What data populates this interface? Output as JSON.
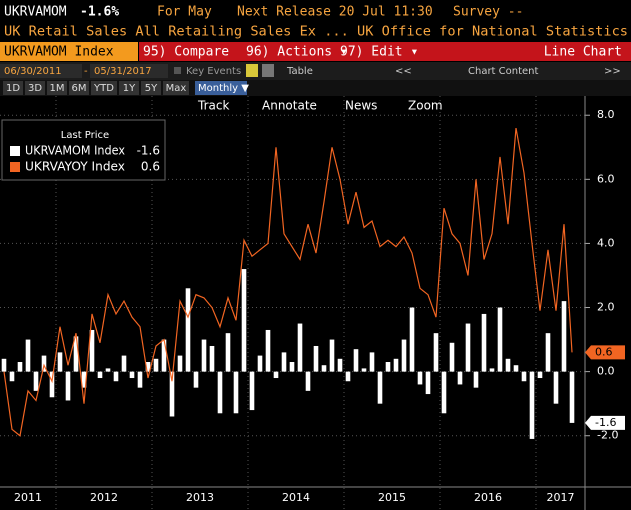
{
  "header": {
    "ticker": "UKRVAMOM",
    "change": "-1.6%",
    "period": "For May",
    "release": "Next Release 20 Jul 11:30",
    "survey": "Survey --",
    "description": "UK Retail Sales All Retailing Sales Ex ... UK Office for National Statistics"
  },
  "toolbar": {
    "security": "UKRVAMOM Index",
    "buttons": [
      "95) Compare",
      "96) Actions ▾",
      "97) Edit ▾"
    ],
    "chart_type": "Line Chart"
  },
  "controls": {
    "start": "06/30/2011",
    "end": "05/31/2017",
    "key_events": "Key Events",
    "table": "Table",
    "chart_content": "Chart Content",
    "periods": [
      "1D",
      "3D",
      "1M",
      "6M",
      "YTD",
      "1Y",
      "5Y",
      "Max"
    ],
    "frequency": "Monthly ▼"
  },
  "tools": [
    "Track",
    "Annotate",
    "News",
    "Zoom"
  ],
  "chart_data": {
    "type": "bar_line",
    "legend_title": "Last Price",
    "year_labels": [
      "2011",
      "2012",
      "2013",
      "2014",
      "2015",
      "2016",
      "2017"
    ],
    "series": [
      {
        "name": "UKRVAMOM Index",
        "kind": "bar",
        "color": "#ffffff",
        "values": [
          0.4,
          -0.3,
          0.3,
          1.0,
          -0.6,
          0.5,
          -0.8,
          0.6,
          -0.9,
          1.1,
          -0.5,
          1.3,
          -0.2,
          0.1,
          -0.3,
          0.5,
          -0.2,
          -0.5,
          0.3,
          0.4,
          1.0,
          -1.4,
          0.5,
          2.6,
          -0.5,
          1.0,
          0.8,
          -1.3,
          1.2,
          -1.3,
          3.2,
          -1.2,
          0.5,
          1.3,
          -0.2,
          0.6,
          0.3,
          1.5,
          -0.6,
          0.8,
          0.2,
          1.0,
          0.4,
          -0.3,
          0.7,
          0.1,
          0.6,
          -1.0,
          0.3,
          0.4,
          1.0,
          2.0,
          -0.4,
          -0.7,
          1.2,
          -1.3,
          0.9,
          -0.4,
          1.5,
          -0.5,
          1.8,
          0.1,
          2.0,
          0.4,
          0.2,
          -0.3,
          -2.1,
          -0.2,
          1.2,
          -1.0,
          2.2,
          -1.6
        ]
      },
      {
        "name": "UKRVAYOY Index",
        "kind": "line",
        "color": "#f26522",
        "values": [
          0.0,
          -1.8,
          -2.0,
          -0.6,
          -0.9,
          0.2,
          -0.3,
          1.4,
          0.2,
          1.2,
          -1.0,
          1.8,
          0.9,
          2.4,
          1.8,
          2.2,
          1.7,
          1.4,
          -0.2,
          0.8,
          1.0,
          -0.3,
          2.2,
          1.7,
          2.4,
          2.3,
          2.0,
          1.4,
          2.3,
          1.6,
          4.1,
          3.6,
          3.8,
          4.0,
          7.0,
          4.3,
          3.9,
          3.5,
          4.6,
          3.7,
          5.3,
          7.0,
          6.0,
          4.6,
          5.6,
          4.5,
          4.7,
          3.9,
          4.1,
          3.9,
          4.2,
          3.7,
          2.6,
          2.4,
          1.7,
          5.1,
          4.3,
          4.0,
          3.0,
          6.0,
          3.5,
          4.3,
          6.7,
          4.6,
          7.6,
          6.2,
          4.0,
          1.9,
          3.8,
          1.9,
          4.6,
          0.6
        ]
      }
    ],
    "ylim": [
      -3.6,
      8.6
    ],
    "yticks": [
      {
        "value": -2,
        "label": "-2.0"
      },
      {
        "value": 0,
        "label": "0.0"
      },
      {
        "value": 2,
        "label": "2.0"
      },
      {
        "value": 4,
        "label": "4.0"
      },
      {
        "value": 6,
        "label": "6.0"
      },
      {
        "value": 8,
        "label": "8.0"
      }
    ],
    "grid": true
  }
}
